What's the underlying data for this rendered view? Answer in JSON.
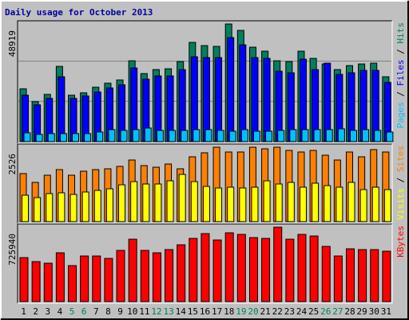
{
  "chart_data": {
    "type": "bar",
    "title": "Daily usage for October 2013",
    "categories": [
      "1",
      "2",
      "3",
      "4",
      "5",
      "6",
      "7",
      "8",
      "9",
      "10",
      "11",
      "12",
      "13",
      "14",
      "15",
      "16",
      "17",
      "18",
      "19",
      "20",
      "21",
      "22",
      "23",
      "24",
      "25",
      "26",
      "27",
      "28",
      "29",
      "30",
      "31"
    ],
    "category_colors": [
      "#000000",
      "#000000",
      "#000000",
      "#000000",
      "#00805c",
      "#00805c",
      "#000000",
      "#000000",
      "#000000",
      "#000000",
      "#000000",
      "#00805c",
      "#00805c",
      "#000000",
      "#000000",
      "#000000",
      "#000000",
      "#000000",
      "#00805c",
      "#00805c",
      "#000000",
      "#000000",
      "#000000",
      "#000000",
      "#000000",
      "#00805c",
      "#00805c",
      "#000000",
      "#000000",
      "#000000",
      "#000000"
    ],
    "legend_separator": " / ",
    "panels": [
      {
        "ylim": [
          0,
          48919
        ],
        "yticks": [
          48919
        ],
        "series": [
          {
            "name": "Hits",
            "color": "#00805c",
            "values": [
              21965,
              16640,
              19635,
              31283,
              19302,
              20301,
              22630,
              24294,
              25626,
              33613,
              28288,
              29952,
              30285,
              33280,
              41267,
              39936,
              39603,
              48919,
              46259,
              39270,
              37606,
              33613,
              33280,
              37606,
              34611,
              32282,
              29952,
              31616,
              32282,
              32614,
              26957
            ]
          },
          {
            "name": "Files",
            "color": "#0000ff",
            "values": [
              19302,
              15309,
              17971,
              26957,
              17971,
              18970,
              20634,
              22298,
              23629,
              30618,
              25958,
              27290,
              27290,
              29952,
              35277,
              34944,
              34944,
              43264,
              40269,
              34944,
              34611,
              29286,
              28621,
              34278,
              29952,
              32614,
              27955,
              28621,
              29619,
              29619,
              24627
            ]
          },
          {
            "name": "Pages",
            "color": "#00c0ff",
            "values": [
              3661,
              2995,
              3328,
              3328,
              3328,
              3328,
              3994,
              4992,
              4659,
              4992,
              5658,
              4659,
              4659,
              4659,
              4992,
              4992,
              4659,
              4326,
              4992,
              4326,
              4326,
              4659,
              4992,
              4992,
              4992,
              4992,
              5325,
              4659,
              4992,
              4659,
              3994
            ]
          }
        ]
      },
      {
        "ylim": [
          0,
          2526
        ],
        "yticks": [
          2526
        ],
        "series": [
          {
            "name": "Sites",
            "color": "#ff8000",
            "values": [
              1630,
              1331,
              1575,
              1765,
              1575,
              1711,
              1765,
              1793,
              1874,
              2091,
              1901,
              1847,
              1955,
              1793,
              2200,
              2336,
              2526,
              2363,
              2363,
              2526,
              2471,
              2526,
              2417,
              2363,
              2417,
              2254,
              2091,
              2363,
              2200,
              2444,
              2363
            ]
          },
          {
            "name": "Visits",
            "color": "#ffff00",
            "values": [
              896,
              815,
              951,
              978,
              923,
              1005,
              1059,
              1114,
              1249,
              1358,
              1277,
              1277,
              1385,
              1602,
              1358,
              1195,
              1141,
              1168,
              1141,
              1168,
              1385,
              1277,
              1331,
              1168,
              1304,
              1222,
              1168,
              1331,
              1086,
              1168,
              1086
            ]
          }
        ]
      },
      {
        "ylim": [
          0,
          725940
        ],
        "yticks": [
          725940
        ],
        "series": [
          {
            "name": "KBytes",
            "color": "#ff0000",
            "values": [
              429330,
              390300,
              374688,
              476166,
              351270,
              444942,
              444942,
              421524,
              499584,
              608868,
              499584,
              476166,
              507390,
              554226,
              616674,
              663510,
              601062,
              671316,
              655704,
              624480,
              616674,
              725940,
              608868,
              655704,
              640092,
              538614,
              444942,
              515196,
              507390,
              507390,
              491778
            ]
          }
        ]
      }
    ]
  }
}
